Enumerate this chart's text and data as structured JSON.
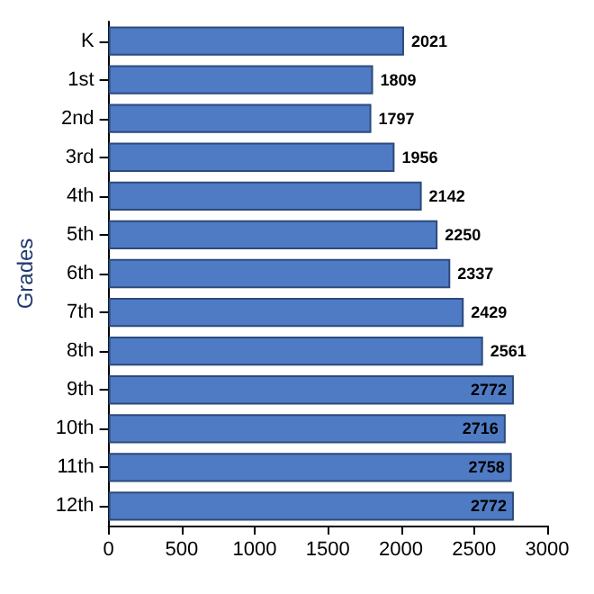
{
  "chart_data": {
    "type": "bar",
    "orientation": "horizontal",
    "ylabel": "Grades",
    "categories": [
      "K",
      "1st",
      "2nd",
      "3rd",
      "4th",
      "5th",
      "6th",
      "7th",
      "8th",
      "9th",
      "10th",
      "11th",
      "12th"
    ],
    "values": [
      2021,
      1809,
      1797,
      1956,
      2142,
      2250,
      2337,
      2429,
      2561,
      2772,
      2716,
      2758,
      2772
    ],
    "color": "#4f7bc4",
    "xlim": [
      0,
      3000
    ],
    "xticks": [
      0,
      500,
      1000,
      1500,
      2000,
      2500,
      3000
    ],
    "data_labels": true
  }
}
